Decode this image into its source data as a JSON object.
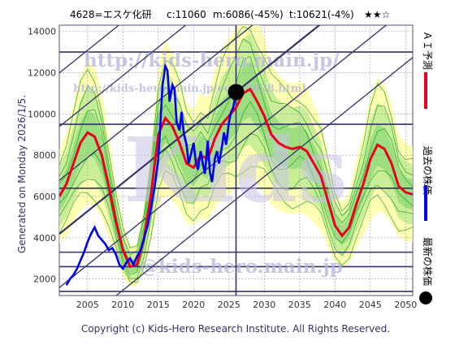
{
  "header": {
    "code_name": "4628=エスケ化研",
    "current": "c:11060",
    "middle": "m:6086(-45%)",
    "target": "t:10621(-4%)",
    "stars": "★★☆"
  },
  "side_label": "Generated on Monday 2026/1/5.",
  "footer": "Copyright (c) Kids-Hero Research Institute. All Rights Reserved.",
  "watermarks": {
    "url_top": "http://kids-hero.main.jp/",
    "url_sub": "http://kids-hero.main.jp/code4628.html",
    "email": "@kids-hero.main.jp",
    "big_logo": "Kids"
  },
  "legend": {
    "latest": "最新の株価",
    "past": "過去の株価",
    "ai": "ＡＩ予測"
  },
  "colors": {
    "ai_line": "#e8001c",
    "past_line": "#0000ee",
    "band_yellow": "#ffff99",
    "band_green": "#66cc66",
    "channel": "#333366",
    "grid": "#9999bb"
  },
  "chart_data": {
    "type": "line",
    "title": "",
    "xlabel": "",
    "ylabel": "",
    "xlim": [
      2001,
      2051
    ],
    "ylim": [
      1200,
      14300
    ],
    "x_ticks": [
      2005,
      2010,
      2015,
      2020,
      2025,
      2030,
      2035,
      2040,
      2045,
      2050
    ],
    "y_ticks": [
      2000,
      4000,
      6000,
      8000,
      10000,
      12000,
      14000
    ],
    "horizontal_levels": [
      1400,
      2600,
      3300,
      6400,
      9500,
      13000
    ],
    "current_point": {
      "x": 2026.0,
      "y": 11060
    },
    "current_year_marker": 2026.0,
    "series": [
      {
        "role": "ai_prediction",
        "x": [
          2001,
          2002,
          2003,
          2004,
          2005,
          2006,
          2007,
          2008,
          2009,
          2010,
          2011,
          2012,
          2013,
          2014,
          2015,
          2016,
          2017,
          2018,
          2019,
          2020,
          2021,
          2022,
          2023,
          2024,
          2025,
          2026,
          2027,
          2028,
          2029,
          2030,
          2031,
          2032,
          2033,
          2034,
          2035,
          2036,
          2037,
          2038,
          2039,
          2040,
          2041,
          2042,
          2043,
          2044,
          2045,
          2046,
          2047,
          2048,
          2049,
          2050,
          2051
        ],
        "y": [
          6000,
          6600,
          7600,
          8600,
          9100,
          8900,
          8000,
          6500,
          4800,
          3400,
          2600,
          2700,
          4000,
          6200,
          9000,
          9800,
          9400,
          8600,
          7600,
          7400,
          8000,
          7800,
          8800,
          9500,
          9900,
          10300,
          11000,
          11200,
          10600,
          9900,
          9000,
          8600,
          8400,
          8300,
          8400,
          8200,
          7600,
          7000,
          5800,
          4600,
          4100,
          4500,
          5600,
          6600,
          7800,
          8500,
          8300,
          7600,
          6500,
          6200,
          6100
        ]
      },
      {
        "role": "past_prices",
        "x": [
          2002.0,
          2002.5,
          2003.0,
          2003.5,
          2004.0,
          2004.5,
          2005.0,
          2005.5,
          2006.0,
          2006.5,
          2007.0,
          2007.5,
          2008.0,
          2008.5,
          2009.0,
          2009.5,
          2010.0,
          2010.5,
          2011.0,
          2011.5,
          2012.0,
          2012.5,
          2013.0,
          2013.5,
          2014.0,
          2014.5,
          2015.0,
          2015.3,
          2015.6,
          2016.0,
          2016.3,
          2016.6,
          2017.0,
          2017.3,
          2017.6,
          2018.0,
          2018.3,
          2018.6,
          2019.0,
          2019.3,
          2019.6,
          2020.0,
          2020.3,
          2020.6,
          2021.0,
          2021.3,
          2021.6,
          2022.0,
          2022.3,
          2022.6,
          2023.0,
          2023.3,
          2023.6,
          2024.0,
          2024.3,
          2024.6,
          2025.0,
          2025.3,
          2025.6,
          2026.0
        ],
        "y": [
          1700,
          2000,
          2200,
          2500,
          2900,
          3300,
          3800,
          4200,
          4500,
          4100,
          3900,
          3700,
          3400,
          3500,
          3200,
          2700,
          2500,
          2800,
          3000,
          2700,
          3100,
          3400,
          4000,
          4600,
          5500,
          6500,
          7800,
          9500,
          11400,
          12300,
          12100,
          10600,
          11400,
          11200,
          9600,
          9200,
          10100,
          9100,
          8500,
          7600,
          8000,
          8600,
          7700,
          7300,
          8200,
          7600,
          7100,
          8700,
          7200,
          6700,
          7800,
          8200,
          7600,
          8400,
          9100,
          8500,
          9600,
          10100,
          10300,
          11060
        ]
      }
    ]
  }
}
